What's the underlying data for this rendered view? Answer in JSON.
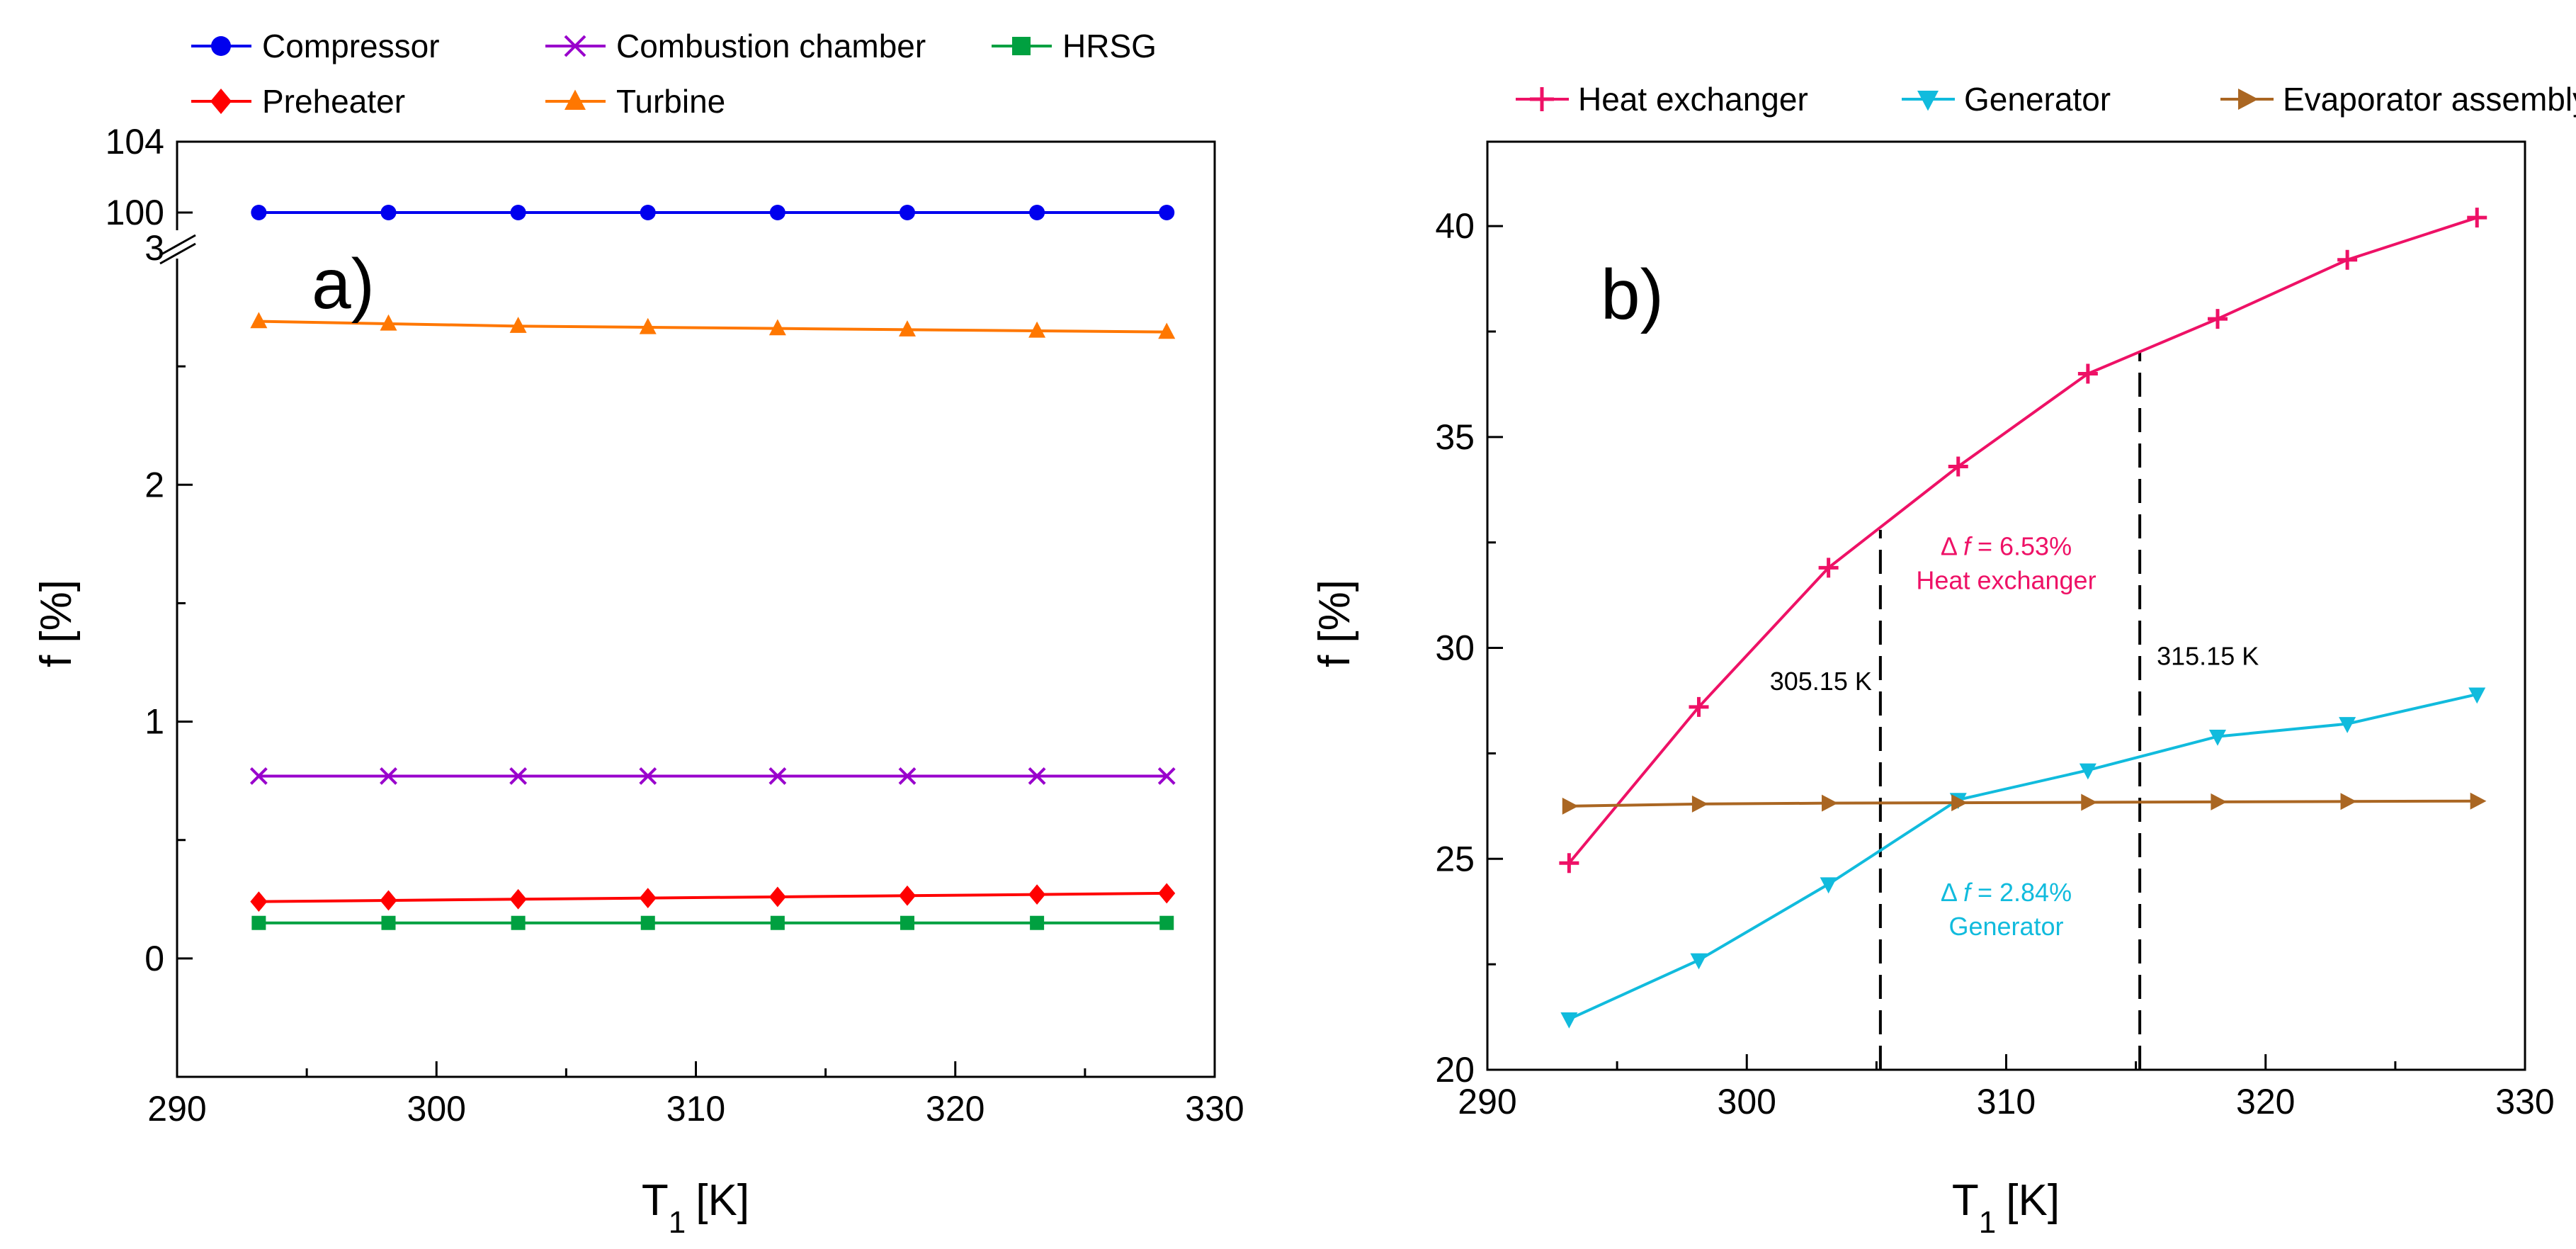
{
  "chart_data": [
    {
      "type": "line",
      "panel_label": "a)",
      "xlabel": "T",
      "xlabel_subscript": "1",
      "xlabel_unit": "[K]",
      "ylabel": "f  [%]",
      "xlim": [
        290,
        330
      ],
      "xticks": [
        "290",
        "300",
        "310",
        "320",
        "330"
      ],
      "ylim": [
        -0.5,
        3
      ],
      "ylim_upper_segment": [
        98,
        104
      ],
      "broken_axis": true,
      "yticks_lower": [
        "0",
        "1",
        "2",
        "3"
      ],
      "yticks_upper": [
        "100",
        "104"
      ],
      "grid": false,
      "legend_placement": "top",
      "x": [
        293.15,
        298.15,
        303.15,
        308.15,
        313.15,
        318.15,
        323.15,
        328.15
      ],
      "series": [
        {
          "name": "Compressor",
          "color": "#0000ee",
          "marker": "circle",
          "values": [
            100,
            100,
            100,
            100,
            100,
            100,
            100,
            100
          ]
        },
        {
          "name": "Combustion chamber",
          "color": "#9900cc",
          "marker": "x",
          "values": [
            0.77,
            0.77,
            0.77,
            0.77,
            0.77,
            0.77,
            0.77,
            0.77
          ]
        },
        {
          "name": "HRSG",
          "color": "#00a040",
          "marker": "square",
          "values": [
            0.15,
            0.15,
            0.15,
            0.15,
            0.15,
            0.15,
            0.15,
            0.15
          ]
        },
        {
          "name": "Preheater",
          "color": "#ff0000",
          "marker": "diamond",
          "values": [
            0.24,
            0.245,
            0.25,
            0.255,
            0.26,
            0.265,
            0.27,
            0.275
          ]
        },
        {
          "name": "Turbine",
          "color": "#ff7700",
          "marker": "triangle-up",
          "values": [
            2.69,
            2.68,
            2.67,
            2.665,
            2.66,
            2.655,
            2.65,
            2.645
          ]
        }
      ]
    },
    {
      "type": "line",
      "panel_label": "b)",
      "xlabel": "T",
      "xlabel_subscript": "1",
      "xlabel_unit": "[K]",
      "ylabel": "f  [%]",
      "xlim": [
        290,
        330
      ],
      "xticks": [
        "290",
        "300",
        "310",
        "320",
        "330"
      ],
      "ylim": [
        20,
        42
      ],
      "yticks": [
        "20",
        "25",
        "30",
        "35",
        "40"
      ],
      "grid": false,
      "legend_placement": "top",
      "x": [
        293.15,
        298.15,
        303.15,
        308.15,
        313.15,
        318.15,
        323.15,
        328.15
      ],
      "series": [
        {
          "name": "Heat exchanger",
          "color": "#ee1166",
          "marker": "plus",
          "values": [
            24.9,
            28.6,
            31.9,
            34.3,
            36.5,
            37.8,
            39.2,
            40.2
          ]
        },
        {
          "name": "Generator",
          "color": "#11bbdd",
          "marker": "triangle-down",
          "values": [
            21.2,
            22.6,
            24.4,
            26.4,
            27.1,
            27.9,
            28.2,
            28.9
          ]
        },
        {
          "name": "Evaporator assembly",
          "color": "#aa6622",
          "marker": "triangle-right",
          "values": [
            26.25,
            26.3,
            26.32,
            26.33,
            26.34,
            26.35,
            26.36,
            26.37
          ]
        }
      ],
      "reference_lines": [
        {
          "x": 305.15,
          "label": "305.15 K"
        },
        {
          "x": 315.15,
          "label": "315.15 K"
        }
      ],
      "annotations": [
        {
          "prefix": "Δ ",
          "symbol": "f",
          "value": " = 6.53%",
          "line2": "Heat exchanger",
          "color": "#ee1166",
          "anchor": [
            310,
            32.2
          ]
        },
        {
          "prefix": "Δ ",
          "symbol": "f",
          "value": " = 2.84%",
          "line2": "Generator",
          "color": "#11bbdd",
          "anchor": [
            310,
            24.0
          ]
        }
      ]
    }
  ]
}
